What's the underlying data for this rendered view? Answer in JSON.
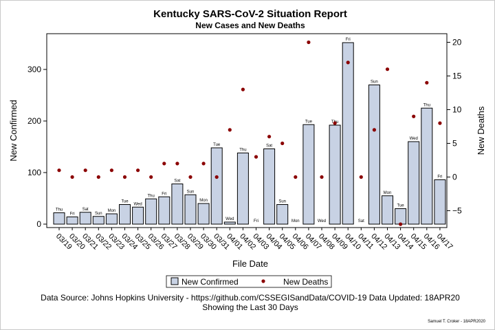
{
  "chart_data": {
    "type": "bar",
    "title": "Kentucky SARS-CoV-2 Situation Report",
    "subtitle": "New Cases and New Deaths",
    "xlabel": "File Date",
    "ylabel": "New Confirmed",
    "y2label": "New Deaths",
    "ylim": [
      0,
      360
    ],
    "y2lim": [
      -7,
      20
    ],
    "yticks": [
      0,
      100,
      200,
      300
    ],
    "y2ticks": [
      -5,
      0,
      5,
      10,
      15,
      20
    ],
    "categories": [
      "03/19",
      "03/20",
      "03/21",
      "03/22",
      "03/23",
      "03/24",
      "03/25",
      "03/26",
      "03/27",
      "03/28",
      "03/29",
      "03/30",
      "03/31",
      "04/01",
      "04/02",
      "04/03",
      "04/04",
      "04/05",
      "04/06",
      "04/07",
      "04/08",
      "04/09",
      "04/10",
      "04/11",
      "04/12",
      "04/13",
      "04/14",
      "04/15",
      "04/16",
      "04/17"
    ],
    "day_labels": [
      "Thu",
      "Fri",
      "Sat",
      "Sun",
      "Mon",
      "Tue",
      "Wed",
      "Thu",
      "Fri",
      "Sat",
      "Sun",
      "Mon",
      "Tue",
      "Wed",
      "Thu",
      "Fri",
      "Sat",
      "Sun",
      "Mon",
      "Tue",
      "Wed",
      "Thu",
      "Fri",
      "Sat",
      "Sun",
      "Mon",
      "Tue",
      "Wed",
      "Thu",
      "Fri"
    ],
    "series": [
      {
        "name": "New Confirmed",
        "kind": "bar",
        "axis": "left",
        "color": "#c8d2e4",
        "values": [
          22,
          14,
          23,
          15,
          20,
          38,
          33,
          49,
          53,
          78,
          57,
          40,
          148,
          4,
          138,
          0,
          146,
          38,
          0,
          193,
          0,
          192,
          352,
          0,
          270,
          55,
          30,
          160,
          225,
          86
        ]
      },
      {
        "name": "New Deaths",
        "kind": "scatter",
        "axis": "right",
        "color": "#8b0000",
        "values": [
          1,
          0,
          1,
          0,
          1,
          0,
          1,
          0,
          2,
          2,
          0,
          2,
          0,
          7,
          13,
          3,
          6,
          5,
          0,
          20,
          0,
          8,
          17,
          0,
          7,
          16,
          -7,
          9,
          14,
          8
        ]
      }
    ],
    "legend_position": "bottom",
    "grid": false
  },
  "footer": {
    "source": "Data Source: Johns Hopkins University - https://github.com/CSSEGISandData/COVID-19 Data Updated: 18APR20",
    "window": "Showing the Last 30 Days",
    "credit": "Samuel T. Croker - 18APR2020"
  }
}
